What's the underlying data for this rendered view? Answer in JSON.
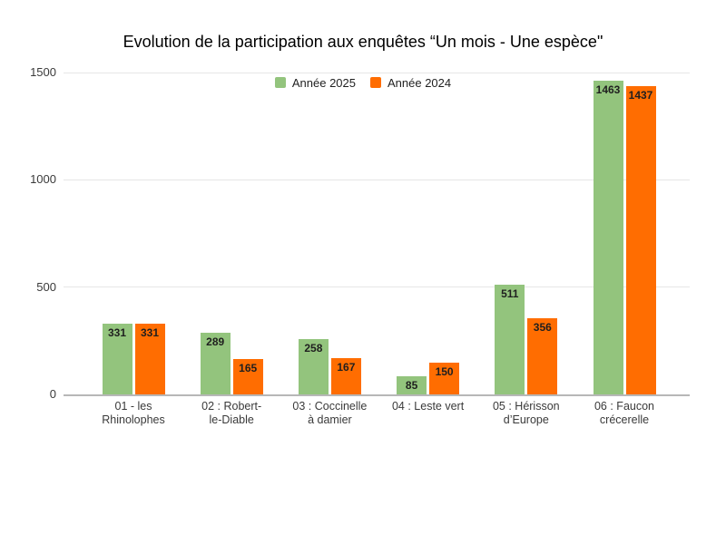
{
  "chart_data": {
    "type": "bar",
    "title": "Evolution de la participation aux enquêtes “Un mois - Une espèce\"",
    "categories": [
      "01 - les\nRhinolophes",
      "02 : Robert-\nle-Diable",
      "03 : Coccinelle\nà damier",
      "04 : Leste vert",
      "05 : Hérisson\nd’Europe",
      "06 : Faucon\ncrécerelle"
    ],
    "series": [
      {
        "name": "Année 2025",
        "color": "#93c47d",
        "values": [
          331,
          289,
          258,
          85,
          511,
          1463
        ]
      },
      {
        "name": "Année 2024",
        "color": "#ff6d01",
        "values": [
          331,
          165,
          167,
          150,
          356,
          1437
        ]
      }
    ],
    "yticks": [
      0,
      500,
      1000,
      1500
    ],
    "ylim": [
      0,
      1500
    ],
    "xlabel": "",
    "ylabel": "",
    "grid": true,
    "legend_position": "top",
    "background_color": "#ffffff",
    "gridline_color": "#e6e6e6",
    "axis_line_color": "#b7b7b7",
    "data_label_color": "#1f1f1f"
  }
}
